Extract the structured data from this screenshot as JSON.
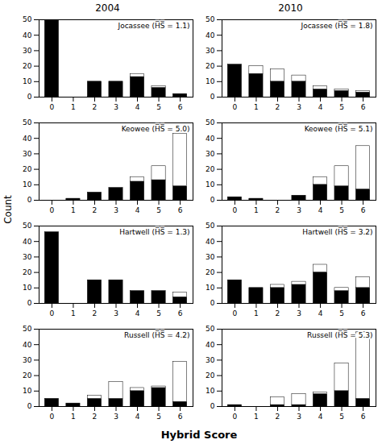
{
  "xlabel": "Hybrid Score",
  "ylabel": "Count",
  "chart_data": [
    {
      "type": "bar",
      "stacked": true,
      "grid": false,
      "title": "2004",
      "annotations": [
        "Jocassee (H̅S̅ = 1.1)"
      ],
      "x": [
        0,
        1,
        2,
        3,
        4,
        5,
        6
      ],
      "xlim": [
        -0.6,
        6.6
      ],
      "xticks": [
        0,
        1,
        2,
        3,
        4,
        5,
        6
      ],
      "ylim": [
        0,
        50
      ],
      "yticks": [
        0,
        10,
        20,
        30,
        40,
        50
      ],
      "series": [
        {
          "color": "black",
          "values": [
            50,
            0,
            10,
            10,
            13,
            6,
            2
          ]
        },
        {
          "color": "white",
          "values": [
            0,
            0,
            0,
            0,
            2,
            1,
            0
          ]
        }
      ]
    },
    {
      "type": "bar",
      "stacked": true,
      "grid": false,
      "title": "2010",
      "annotations": [
        "Jocassee (H̅S̅ = 1.8)"
      ],
      "x": [
        0,
        1,
        2,
        3,
        4,
        5,
        6
      ],
      "xlim": [
        -0.6,
        6.6
      ],
      "xticks": [
        0,
        1,
        2,
        3,
        4,
        5,
        6
      ],
      "ylim": [
        0,
        50
      ],
      "yticks": [
        0,
        10,
        20,
        30,
        40,
        50
      ],
      "series": [
        {
          "color": "black",
          "values": [
            21,
            15,
            10,
            10,
            5,
            4,
            3
          ]
        },
        {
          "color": "white",
          "values": [
            0,
            5,
            8,
            4,
            2,
            1,
            1
          ]
        }
      ]
    },
    {
      "type": "bar",
      "stacked": true,
      "grid": false,
      "annotations": [
        "Keowee (H̅S̅ = 5.0)"
      ],
      "x": [
        0,
        1,
        2,
        3,
        4,
        5,
        6
      ],
      "xlim": [
        -0.6,
        6.6
      ],
      "xticks": [
        0,
        1,
        2,
        3,
        4,
        5,
        6
      ],
      "ylim": [
        0,
        50
      ],
      "yticks": [
        0,
        10,
        20,
        30,
        40,
        50
      ],
      "series": [
        {
          "color": "black",
          "values": [
            0,
            1,
            5,
            8,
            12,
            13,
            9
          ]
        },
        {
          "color": "white",
          "values": [
            0,
            0,
            0,
            0,
            3,
            9,
            34
          ]
        }
      ]
    },
    {
      "type": "bar",
      "stacked": true,
      "grid": false,
      "annotations": [
        "Keowee (H̅S̅ = 5.1)"
      ],
      "x": [
        0,
        1,
        2,
        3,
        4,
        5,
        6
      ],
      "xlim": [
        -0.6,
        6.6
      ],
      "xticks": [
        0,
        1,
        2,
        3,
        4,
        5,
        6
      ],
      "ylim": [
        0,
        50
      ],
      "yticks": [
        0,
        10,
        20,
        30,
        40,
        50
      ],
      "series": [
        {
          "color": "black",
          "values": [
            2,
            1,
            0,
            3,
            10,
            9,
            7
          ]
        },
        {
          "color": "white",
          "values": [
            0,
            0,
            0,
            0,
            5,
            13,
            28
          ]
        }
      ]
    },
    {
      "type": "bar",
      "stacked": true,
      "grid": false,
      "annotations": [
        "Hartwell (H̅S̅ = 1.3)"
      ],
      "x": [
        0,
        1,
        2,
        3,
        4,
        5,
        6
      ],
      "xlim": [
        -0.6,
        6.6
      ],
      "xticks": [
        0,
        1,
        2,
        3,
        4,
        5,
        6
      ],
      "ylim": [
        0,
        50
      ],
      "yticks": [
        0,
        10,
        20,
        30,
        40,
        50
      ],
      "series": [
        {
          "color": "black",
          "values": [
            46,
            0,
            15,
            15,
            8,
            8,
            4
          ]
        },
        {
          "color": "white",
          "values": [
            0,
            0,
            0,
            0,
            0,
            0,
            3
          ]
        }
      ]
    },
    {
      "type": "bar",
      "stacked": true,
      "grid": false,
      "annotations": [
        "Hartwell (H̅S̅ = 3.2)"
      ],
      "x": [
        0,
        1,
        2,
        3,
        4,
        5,
        6
      ],
      "xlim": [
        -0.6,
        6.6
      ],
      "xticks": [
        0,
        1,
        2,
        3,
        4,
        5,
        6
      ],
      "ylim": [
        0,
        50
      ],
      "yticks": [
        0,
        10,
        20,
        30,
        40,
        50
      ],
      "series": [
        {
          "color": "black",
          "values": [
            15,
            10,
            10,
            12,
            20,
            8,
            10
          ]
        },
        {
          "color": "white",
          "values": [
            0,
            0,
            2,
            2,
            5,
            2,
            7
          ]
        }
      ]
    },
    {
      "type": "bar",
      "stacked": true,
      "grid": false,
      "annotations": [
        "Russell (H̅S̅ = 4.2)"
      ],
      "x": [
        0,
        1,
        2,
        3,
        4,
        5,
        6
      ],
      "xlim": [
        -0.6,
        6.6
      ],
      "xticks": [
        0,
        1,
        2,
        3,
        4,
        5,
        6
      ],
      "ylim": [
        0,
        50
      ],
      "yticks": [
        0,
        10,
        20,
        30,
        40,
        50
      ],
      "series": [
        {
          "color": "black",
          "values": [
            5,
            2,
            5,
            5,
            10,
            12,
            3
          ]
        },
        {
          "color": "white",
          "values": [
            0,
            0,
            2,
            11,
            2,
            1,
            26
          ]
        }
      ]
    },
    {
      "type": "bar",
      "stacked": true,
      "grid": false,
      "annotations": [
        "Russell (H̅S̅ = 5.3)"
      ],
      "x": [
        0,
        1,
        2,
        3,
        4,
        5,
        6
      ],
      "xlim": [
        -0.6,
        6.6
      ],
      "xticks": [
        0,
        1,
        2,
        3,
        4,
        5,
        6
      ],
      "ylim": [
        0,
        50
      ],
      "yticks": [
        0,
        10,
        20,
        30,
        40,
        50
      ],
      "series": [
        {
          "color": "black",
          "values": [
            1,
            0,
            1,
            1,
            8,
            10,
            5
          ]
        },
        {
          "color": "white",
          "values": [
            0,
            0,
            5,
            7,
            1,
            18,
            43
          ]
        }
      ]
    }
  ]
}
